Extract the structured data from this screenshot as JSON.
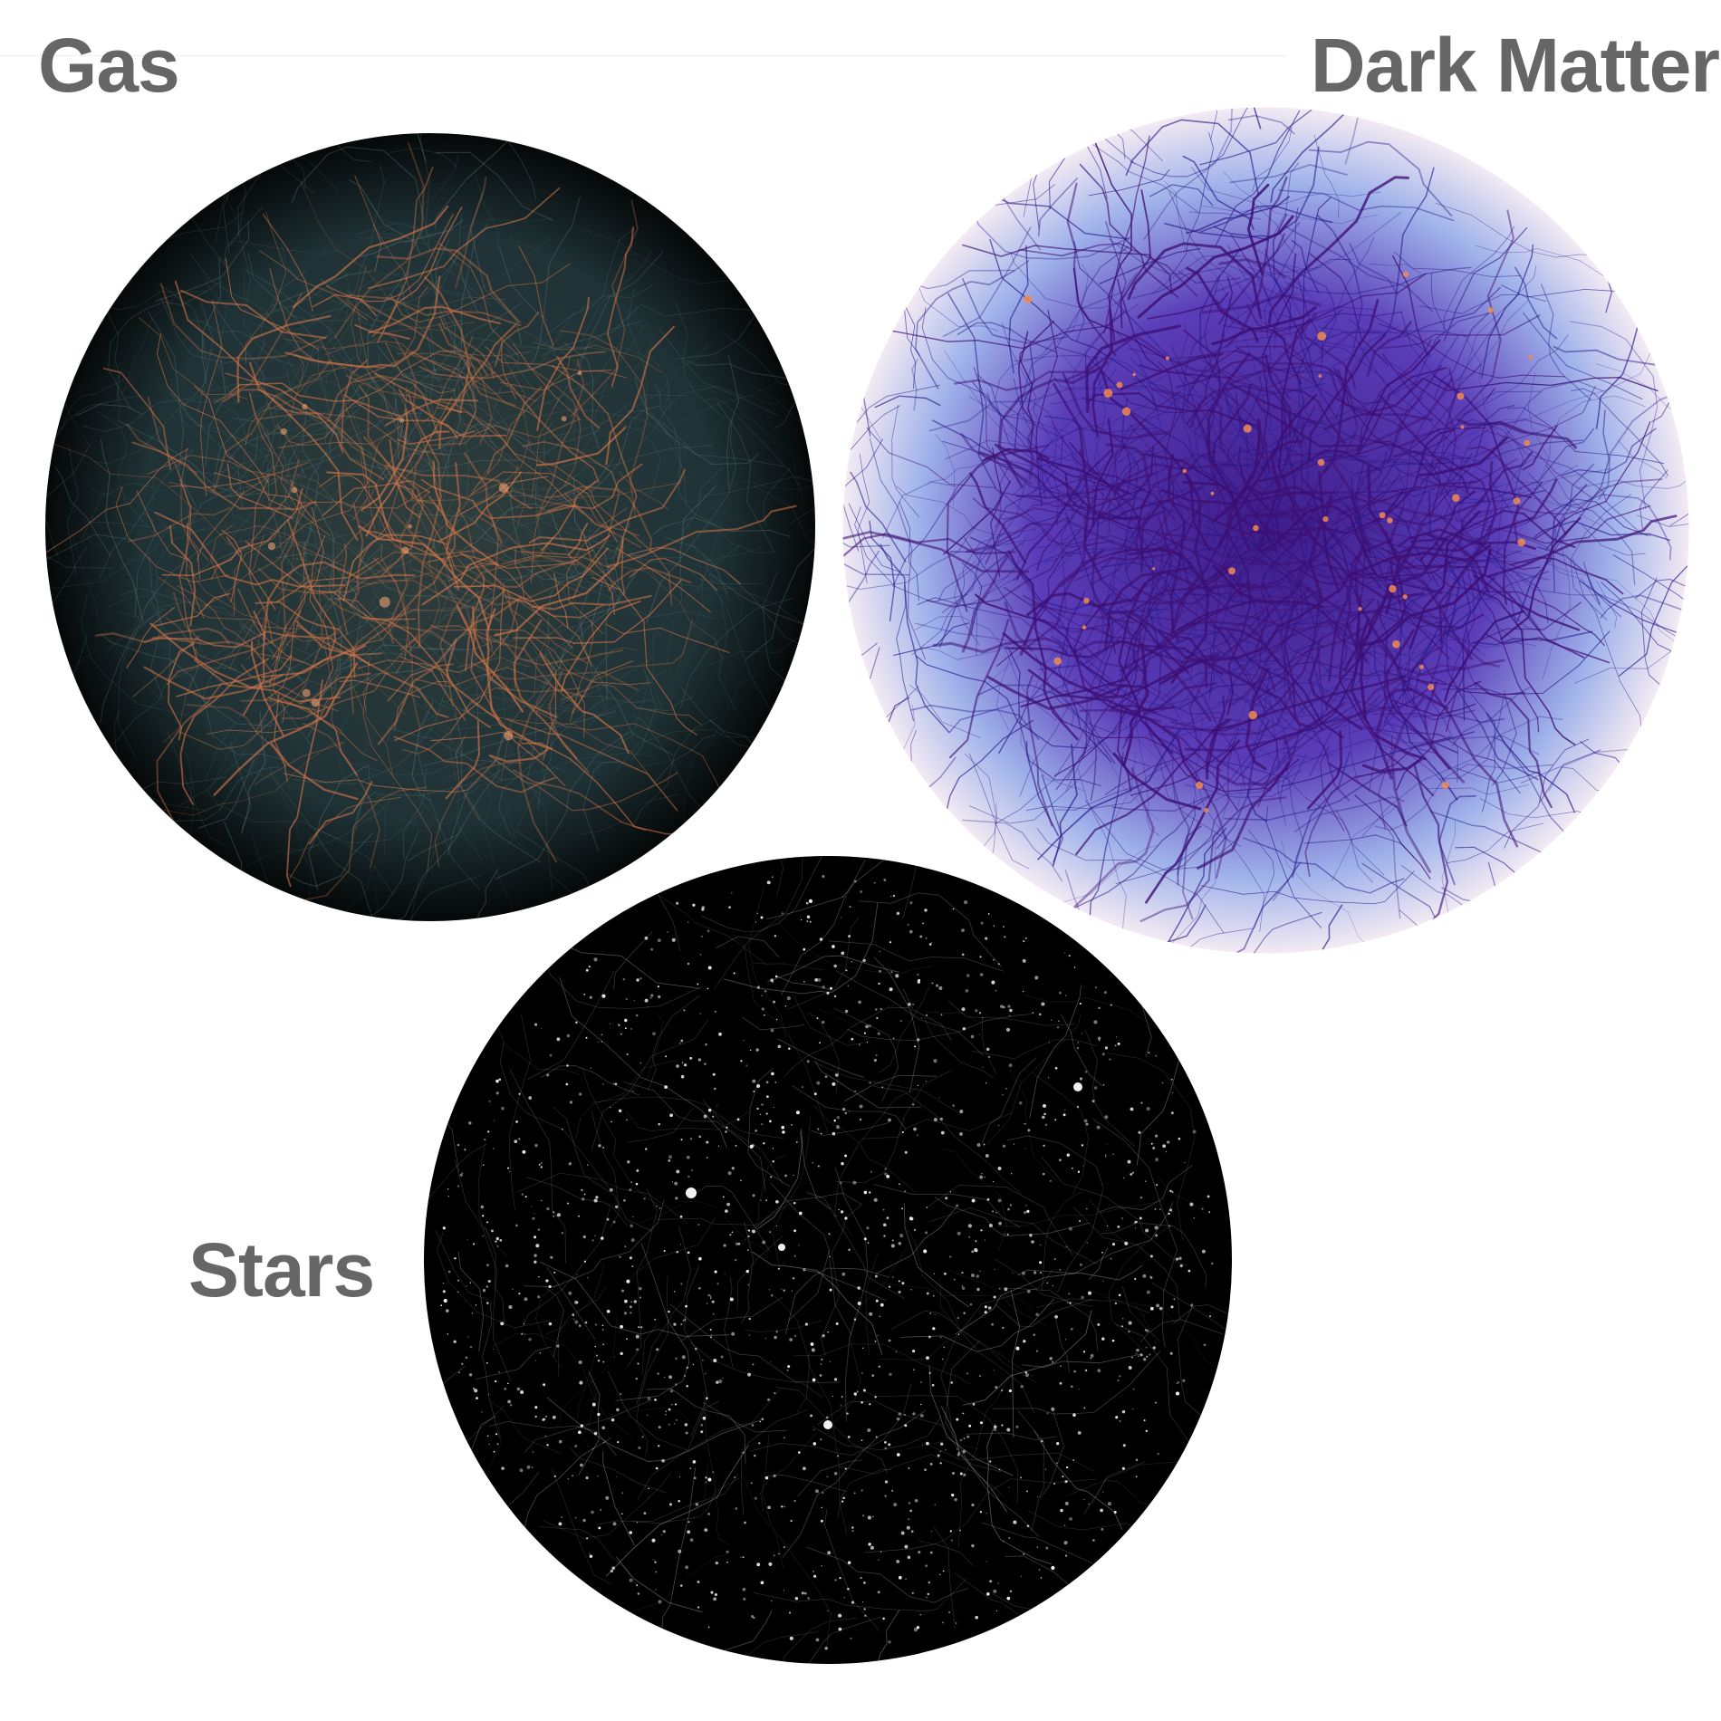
{
  "panels": {
    "gas": {
      "label": "Gas"
    },
    "dark_matter": {
      "label": "Dark Matter"
    },
    "stars": {
      "label": "Stars"
    }
  },
  "colors": {
    "label_text": "#666666",
    "background": "#ffffff",
    "gas_base": "#1f3236",
    "gas_filament": "#d9774a",
    "dm_halo": "#9fb2ea",
    "dm_core": "#3d0f73",
    "dm_hotspot": "#f28a52",
    "stars_base": "#000000",
    "stars_points": "#f2f2f2"
  }
}
